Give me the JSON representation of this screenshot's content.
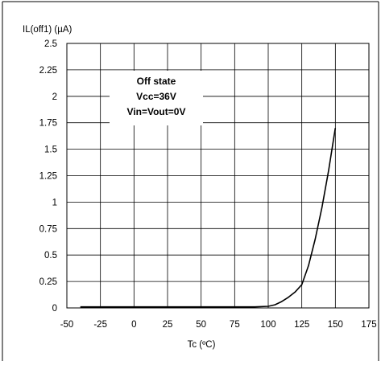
{
  "chart_data": {
    "type": "line",
    "ylabel": "IL(off1) (µA)",
    "xlabel": "Tc (ºC)",
    "xlim": [
      -50,
      175
    ],
    "ylim": [
      0,
      2.5
    ],
    "xticks": [
      "-50",
      "-25",
      "0",
      "25",
      "50",
      "75",
      "100",
      "125",
      "150",
      "175"
    ],
    "yticks": [
      "0",
      "0.25",
      "0.5",
      "0.75",
      "1",
      "1.25",
      "1.5",
      "1.75",
      "2",
      "2.25",
      "2.5"
    ],
    "grid": true,
    "annotation": [
      "Off state",
      "Vcc=36V",
      "Vin=Vout=0V"
    ],
    "series": [
      {
        "color": "#000000",
        "x": [
          -40,
          0,
          25,
          50,
          75,
          90,
          100,
          105,
          110,
          115,
          120,
          125,
          130,
          135,
          140,
          145,
          150
        ],
        "y": [
          0.01,
          0.01,
          0.01,
          0.01,
          0.01,
          0.01,
          0.015,
          0.03,
          0.06,
          0.1,
          0.15,
          0.22,
          0.4,
          0.65,
          0.95,
          1.3,
          1.7
        ]
      }
    ]
  }
}
